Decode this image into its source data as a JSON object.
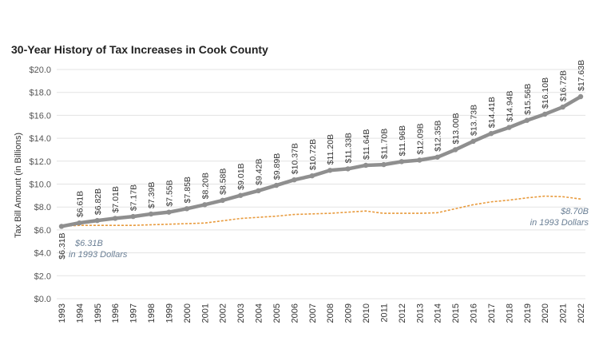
{
  "chart_data": {
    "type": "line",
    "title": "30-Year History of Tax Increases in Cook County",
    "ylabel": "Tax Bill Amount (in Billions)",
    "xlabel": "",
    "yticks": [
      "$0.0",
      "$2.0",
      "$4.0",
      "$6.0",
      "$8.0",
      "$10.0",
      "$12.0",
      "$14.0",
      "$16.0",
      "$18.0",
      "$20.0"
    ],
    "ylim": [
      0,
      20
    ],
    "x": [
      "1993",
      "1994",
      "1995",
      "1996",
      "1997",
      "1998",
      "1999",
      "2000",
      "2001",
      "2002",
      "2003",
      "2004",
      "2005",
      "2006",
      "2007",
      "2008",
      "2009",
      "2010",
      "2011",
      "2012",
      "2013",
      "2014",
      "2015",
      "2016",
      "2017",
      "2018",
      "2019",
      "2020",
      "2021",
      "2022"
    ],
    "series": [
      {
        "name": "",
        "color": "#8f8f8f",
        "values": [
          6.31,
          6.61,
          6.82,
          7.01,
          7.17,
          7.39,
          7.55,
          7.85,
          8.2,
          8.58,
          9.01,
          9.42,
          9.89,
          10.37,
          10.72,
          11.2,
          11.33,
          11.64,
          11.7,
          11.96,
          12.09,
          12.35,
          13.0,
          13.73,
          14.41,
          14.94,
          15.56,
          16.1,
          16.72,
          17.63
        ],
        "labels": [
          "$6.31B",
          "$6.61B",
          "$6.82B",
          "$7.01B",
          "$7.17B",
          "$7.39B",
          "$7.55B",
          "$7.85B",
          "$8.20B",
          "$8.58B",
          "$9.01B",
          "$9.42B",
          "$9.89B",
          "$10.37B",
          "$10.72B",
          "$11.20B",
          "$11.33B",
          "$11.64B",
          "$11.70B",
          "$11.96B",
          "$12.09B",
          "$12.35B",
          "$13.00B",
          "$13.73B",
          "$14.41B",
          "$14.94B",
          "$15.56B",
          "$16.10B",
          "$16.72B",
          "$17.63B"
        ]
      },
      {
        "name": "",
        "color": "#e89a3c",
        "values": [
          6.31,
          6.4,
          6.4,
          6.4,
          6.4,
          6.45,
          6.5,
          6.55,
          6.6,
          6.8,
          7.0,
          7.1,
          7.2,
          7.35,
          7.4,
          7.45,
          7.55,
          7.65,
          7.45,
          7.45,
          7.45,
          7.5,
          7.85,
          8.2,
          8.45,
          8.6,
          8.8,
          8.95,
          8.9,
          8.7
        ]
      }
    ],
    "annotations": [
      {
        "value": "$6.31B",
        "sub": "in 1993 Dollars"
      },
      {
        "value": "$8.70B",
        "sub": "in 1993 Dollars"
      }
    ],
    "grid": "horizontal"
  }
}
